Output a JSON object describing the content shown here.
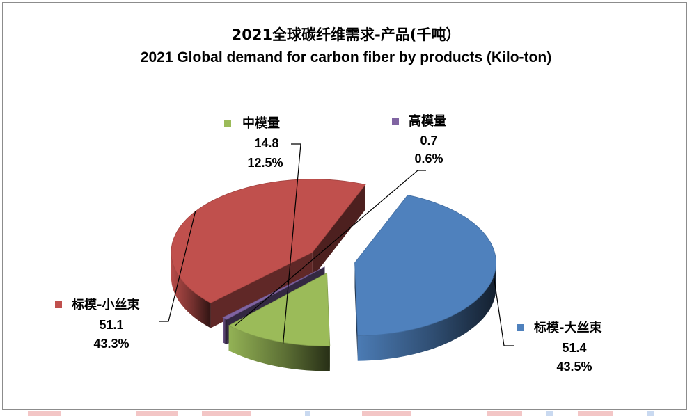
{
  "chart_data": {
    "type": "pie",
    "style": "3d-exploded",
    "title": "2021全球碳纤维需求-产品(千吨）",
    "subtitle": "2021 Global demand for carbon fiber by products (Kilo-ton)",
    "unit": "Kilo-ton",
    "slices": [
      {
        "key": "large_tow",
        "name": "标模-大丝束",
        "value": 51.4,
        "percent": "43.5%",
        "value_label": "51.4",
        "color": "#4F81BD"
      },
      {
        "key": "mid_modulus",
        "name": "中模量",
        "value": 14.8,
        "percent": "12.5%",
        "value_label": "14.8",
        "color": "#9BBB59"
      },
      {
        "key": "high_modulus",
        "name": "高模量",
        "value": 0.7,
        "percent": "0.6%",
        "value_label": "0.7",
        "color": "#8064A2"
      },
      {
        "key": "small_tow",
        "name": "标模-小丝束",
        "value": 51.1,
        "percent": "43.3%",
        "value_label": "51.1",
        "color": "#C0504D"
      }
    ],
    "legend": "none",
    "labels": "outside-with-leader-lines"
  },
  "colors": {
    "border": "#8c8c8c",
    "background": "#ffffff"
  }
}
